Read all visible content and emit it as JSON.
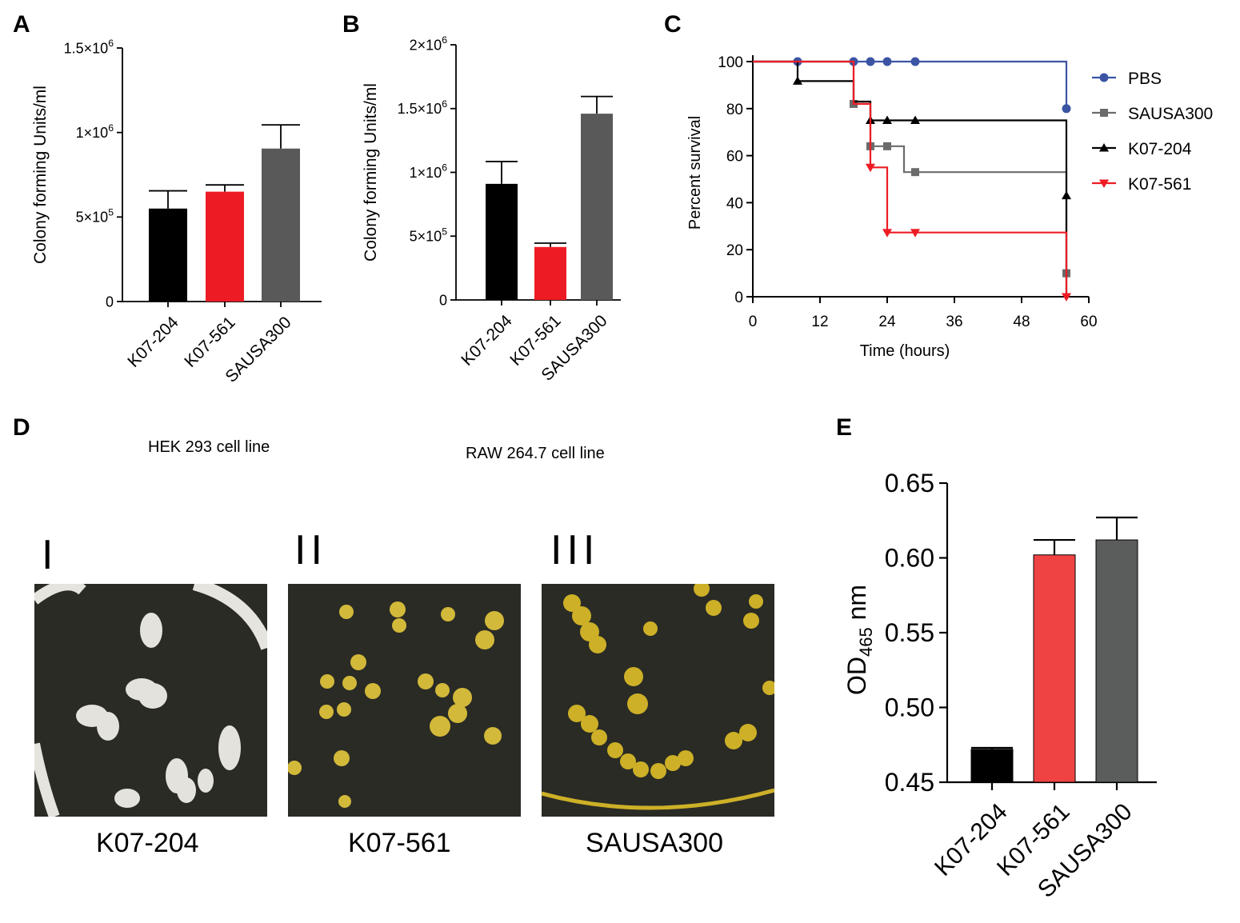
{
  "panel_letters": {
    "a": "A",
    "b": "B",
    "c": "C",
    "d": "D",
    "e": "E"
  },
  "chart_data": [
    {
      "id": "A",
      "type": "bar",
      "ylabel": "Colony forming Units/ml",
      "categories": [
        "K07-204",
        "K07-561",
        "SAUSA300"
      ],
      "values": [
        550000,
        650000,
        905000
      ],
      "errors": [
        105000,
        40000,
        140000
      ],
      "colors": [
        "#000000",
        "#ed1c24",
        "#595959"
      ],
      "ylim": [
        0,
        1500000
      ],
      "yticks": [
        0,
        500000,
        1000000,
        1500000
      ],
      "yticklabels": [
        {
          "base": "0",
          "exp": ""
        },
        {
          "base": "5×10",
          "exp": "5"
        },
        {
          "base": "1×10",
          "exp": "6"
        },
        {
          "base": "1.5×10",
          "exp": "6"
        }
      ]
    },
    {
      "id": "B",
      "type": "bar",
      "ylabel": "Colony forming Units/ml",
      "categories": [
        "K07-204",
        "K07-561",
        "SAUSA300"
      ],
      "values": [
        910000,
        415000,
        1460000
      ],
      "errors": [
        175000,
        30000,
        135000
      ],
      "colors": [
        "#000000",
        "#ed1c24",
        "#595959"
      ],
      "ylim": [
        0,
        2000000
      ],
      "yticks": [
        0,
        500000,
        1000000,
        1500000,
        2000000
      ],
      "yticklabels": [
        {
          "base": "0",
          "exp": ""
        },
        {
          "base": "5×10",
          "exp": "5"
        },
        {
          "base": "1×10",
          "exp": "6"
        },
        {
          "base": "1.5×10",
          "exp": "6"
        },
        {
          "base": "2×10",
          "exp": "6"
        }
      ]
    },
    {
      "id": "C",
      "type": "line",
      "xlabel": "Time (hours)",
      "ylabel": "Percent survival",
      "xlim": [
        0,
        60
      ],
      "ylim": [
        0,
        100
      ],
      "xticks": [
        0,
        12,
        24,
        36,
        48,
        60
      ],
      "yticks": [
        0,
        20,
        40,
        60,
        80,
        100
      ],
      "legend_position": "right",
      "series": [
        {
          "name": "PBS",
          "color": "#3b54a4",
          "marker": "circle",
          "steps": [
            [
              0,
              100
            ],
            [
              56,
              100
            ],
            [
              56,
              80
            ]
          ],
          "markers": [
            [
              8,
              100
            ],
            [
              18,
              100
            ],
            [
              21,
              100
            ],
            [
              24,
              100
            ],
            [
              29,
              100
            ],
            [
              56,
              80
            ]
          ]
        },
        {
          "name": "SAUSA300",
          "color": "#6b6b6b",
          "marker": "square",
          "steps": [
            [
              0,
              100
            ],
            [
              18,
              100
            ],
            [
              18,
              82
            ],
            [
              21,
              82
            ],
            [
              21,
              64
            ],
            [
              27,
              64
            ],
            [
              27,
              53
            ],
            [
              56,
              53
            ],
            [
              56,
              10
            ]
          ],
          "markers": [
            [
              18,
              82
            ],
            [
              21,
              64
            ],
            [
              24,
              64
            ],
            [
              29,
              53
            ],
            [
              56,
              10
            ]
          ]
        },
        {
          "name": "K07-204",
          "color": "#000000",
          "marker": "triangle-up",
          "steps": [
            [
              0,
              100
            ],
            [
              8,
              100
            ],
            [
              8,
              91.7
            ],
            [
              18,
              91.7
            ],
            [
              18,
              83
            ],
            [
              21,
              83
            ],
            [
              21,
              75
            ],
            [
              56,
              75
            ],
            [
              56,
              43
            ],
            [
              56,
              0
            ]
          ],
          "markers": [
            [
              8,
              91.7
            ],
            [
              21,
              75
            ],
            [
              24,
              75
            ],
            [
              29,
              75
            ],
            [
              56,
              43
            ]
          ]
        },
        {
          "name": "K07-561",
          "color": "#ed1c24",
          "marker": "triangle-down",
          "steps": [
            [
              0,
              100
            ],
            [
              18,
              100
            ],
            [
              18,
              82
            ],
            [
              21,
              82
            ],
            [
              21,
              55
            ],
            [
              24,
              55
            ],
            [
              24,
              27.3
            ],
            [
              56,
              27.3
            ],
            [
              56,
              0
            ]
          ],
          "markers": [
            [
              21,
              55
            ],
            [
              24,
              27.3
            ],
            [
              29,
              27.3
            ],
            [
              56,
              0
            ]
          ]
        }
      ]
    },
    {
      "id": "E",
      "type": "bar",
      "ylabel_main": "OD",
      "ylabel_sub": "465",
      "ylabel_unit": " nm",
      "categories": [
        "K07-204",
        "K07-561",
        "SAUSA300"
      ],
      "values": [
        0.472,
        0.602,
        0.612
      ],
      "errors": [
        0.001,
        0.01,
        0.015
      ],
      "colors": [
        "#000000",
        "#ef4343",
        "#5a5d5c"
      ],
      "ylim": [
        0.45,
        0.65
      ],
      "yticks": [
        0.45,
        0.5,
        0.55,
        0.6,
        0.65
      ],
      "yticklabels": [
        "0.45",
        "0.50",
        "0.55",
        "0.60",
        "0.65"
      ]
    }
  ],
  "panel_d": {
    "cell_lines": [
      "HEK 293 cell line",
      "RAW 264.7 cell line"
    ],
    "plates": [
      {
        "numeral": "I",
        "label": "K07-204",
        "colony_color": "#e4e2dc"
      },
      {
        "numeral": "II",
        "label": "K07-561",
        "colony_color": "#d2b93a"
      },
      {
        "numeral": "III",
        "label": "SAUSA300",
        "colony_color": "#cdb027"
      }
    ]
  }
}
